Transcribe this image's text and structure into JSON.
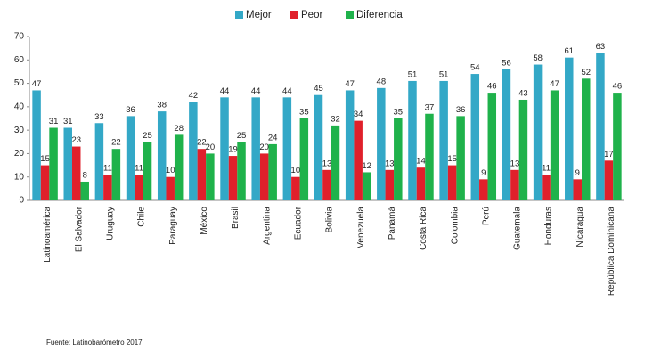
{
  "chart_data": {
    "type": "bar",
    "source": "Fuente: Latinobarómetro 2017",
    "categories": [
      "Latinoamérica",
      "El Salvador",
      "Uruguay",
      "Chile",
      "Paraguay",
      "México",
      "Brasil",
      "Argentina",
      "Ecuador",
      "Bolivia",
      "Venezuela",
      "Panamá",
      "Costa Rica",
      "Colombia",
      "Perú",
      "Guatemala",
      "Honduras",
      "Nicaragua",
      "República Dominicana"
    ],
    "series": [
      {
        "name": "Mejor",
        "color": "#33a8c7",
        "values": [
          47,
          31,
          33,
          36,
          38,
          42,
          44,
          44,
          44,
          45,
          47,
          48,
          51,
          51,
          54,
          56,
          58,
          61,
          63
        ]
      },
      {
        "name": "Peor",
        "color": "#e0202b",
        "values": [
          15,
          23,
          11,
          11,
          10,
          22,
          19,
          20,
          10,
          13,
          34,
          13,
          14,
          15,
          9,
          13,
          11,
          9,
          17
        ]
      },
      {
        "name": "Diferencia",
        "color": "#1fb24b",
        "values": [
          31,
          8,
          22,
          25,
          28,
          20,
          25,
          24,
          35,
          32,
          12,
          35,
          37,
          36,
          46,
          43,
          47,
          52,
          46
        ]
      }
    ],
    "ylim": [
      0,
      70
    ],
    "yticks": [
      0,
      10,
      20,
      30,
      40,
      50,
      60,
      70
    ],
    "grid": false,
    "legend": "top"
  }
}
